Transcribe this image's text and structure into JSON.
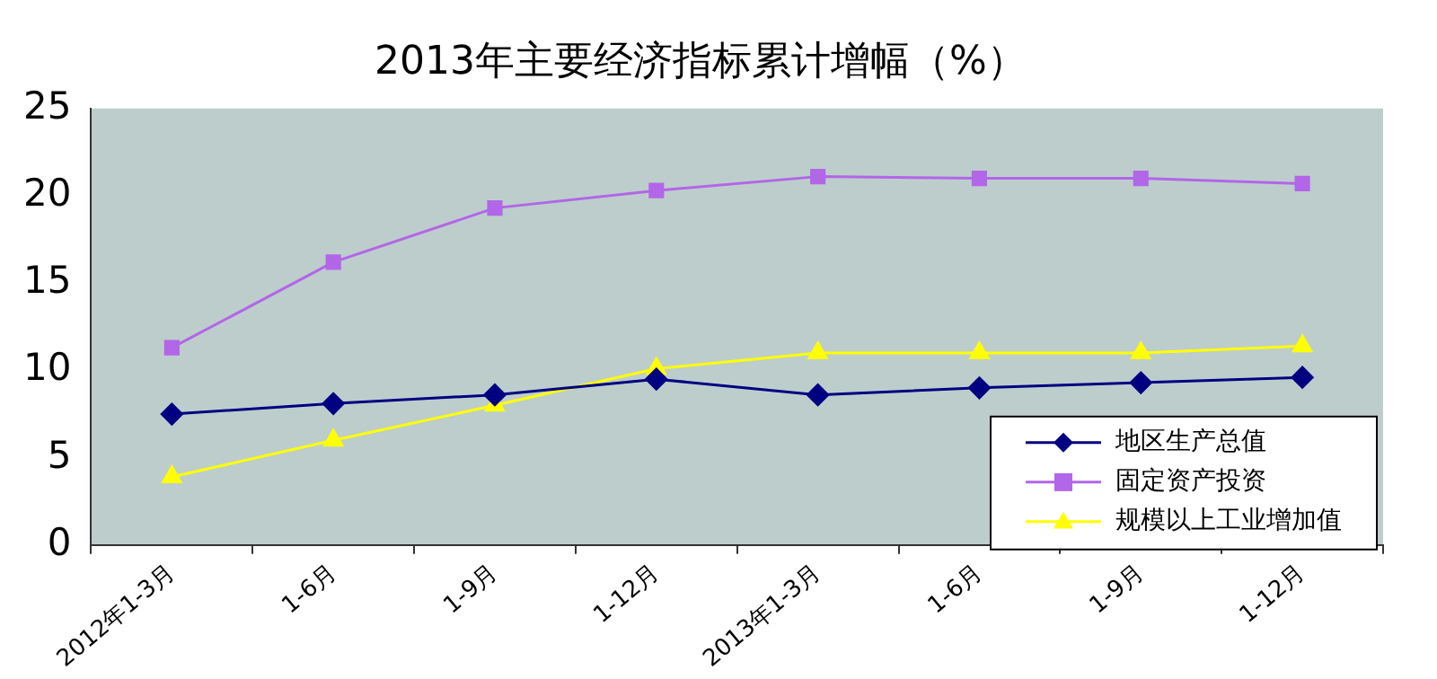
{
  "chart_data": {
    "type": "line",
    "title": "2013年主要经济指标累计增幅（%）",
    "categories": [
      "2012年1-3月",
      "1-6月",
      "1-9月",
      "1-12月",
      "2013年1-3月",
      "1-6月",
      "1-9月",
      "1-12月"
    ],
    "series": [
      {
        "name": "地区生产总值",
        "color": "#000080",
        "marker": "diamond",
        "values": [
          7.5,
          8.1,
          8.6,
          9.5,
          8.6,
          9.0,
          9.3,
          9.6
        ]
      },
      {
        "name": "固定资产投资",
        "color": "#b266e8",
        "marker": "square",
        "values": [
          11.3,
          16.2,
          19.3,
          20.3,
          21.1,
          21.0,
          21.0,
          20.7
        ]
      },
      {
        "name": "规模以上工业增加值",
        "color": "#ffff00",
        "marker": "triangle",
        "values": [
          3.9,
          6.0,
          8.0,
          10.1,
          11.0,
          11.0,
          11.0,
          11.4
        ]
      }
    ],
    "ylim": [
      0,
      25
    ],
    "yticks": [
      0,
      5,
      10,
      15,
      20,
      25
    ],
    "grid": false,
    "legend": "bottom right"
  }
}
